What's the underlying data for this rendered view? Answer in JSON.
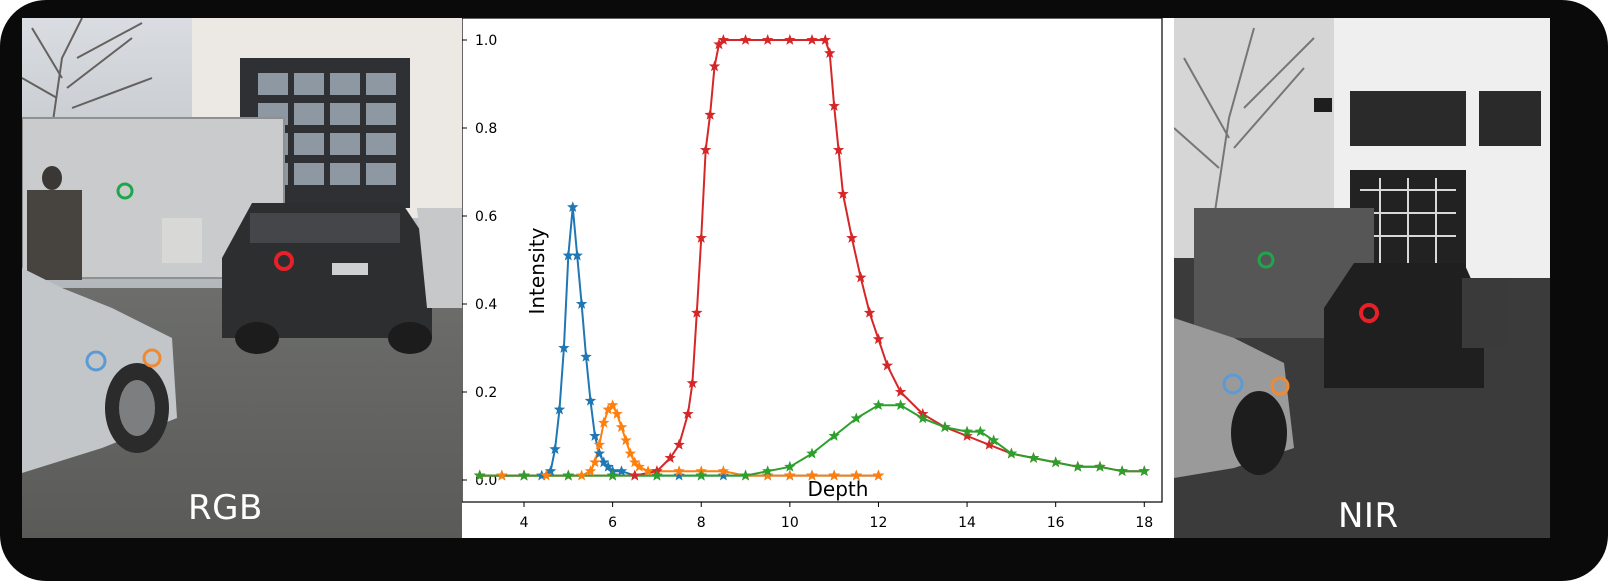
{
  "panels": {
    "rgb_label": "RGB",
    "nir_label": "NIR"
  },
  "markers": [
    {
      "name": "green",
      "color": "#1fa64a"
    },
    {
      "name": "red",
      "color": "#e8202a"
    },
    {
      "name": "blue",
      "color": "#5b9bd5"
    },
    {
      "name": "orange",
      "color": "#ee8a35"
    }
  ],
  "chart_data": {
    "type": "line",
    "title": "",
    "xlabel": "Depth",
    "ylabel": "Intensity",
    "xlim": [
      2.6,
      18.4
    ],
    "ylim": [
      -0.05,
      1.05
    ],
    "xticks": [
      4,
      6,
      8,
      10,
      12,
      14,
      16,
      18
    ],
    "yticks": [
      0.0,
      0.2,
      0.4,
      0.6,
      0.8,
      1.0
    ],
    "marker": "star",
    "series": [
      {
        "name": "blue",
        "color": "#1f77b4",
        "x": [
          3.0,
          3.5,
          4.0,
          4.4,
          4.6,
          4.7,
          4.8,
          4.9,
          5.0,
          5.1,
          5.2,
          5.3,
          5.4,
          5.5,
          5.6,
          5.7,
          5.8,
          5.9,
          6.0,
          6.2,
          6.5,
          7.0,
          7.5,
          8.0,
          8.5,
          9.0,
          9.5,
          10.0,
          10.5,
          11.0,
          11.5,
          12.0
        ],
        "y": [
          0.01,
          0.01,
          0.01,
          0.01,
          0.02,
          0.07,
          0.16,
          0.3,
          0.51,
          0.62,
          0.51,
          0.4,
          0.28,
          0.18,
          0.1,
          0.06,
          0.04,
          0.03,
          0.02,
          0.02,
          0.01,
          0.01,
          0.01,
          0.01,
          0.01,
          0.01,
          0.01,
          0.01,
          0.01,
          0.01,
          0.01,
          0.01
        ]
      },
      {
        "name": "orange",
        "color": "#ff7f0e",
        "x": [
          3.0,
          3.5,
          4.0,
          4.5,
          5.0,
          5.3,
          5.5,
          5.6,
          5.7,
          5.8,
          5.9,
          6.0,
          6.1,
          6.2,
          6.3,
          6.4,
          6.5,
          6.6,
          6.8,
          7.0,
          7.5,
          8.0,
          8.5,
          9.0,
          9.5,
          10.0,
          10.5,
          11.0,
          11.5,
          12.0
        ],
        "y": [
          0.01,
          0.01,
          0.01,
          0.01,
          0.01,
          0.01,
          0.02,
          0.04,
          0.08,
          0.13,
          0.16,
          0.17,
          0.15,
          0.12,
          0.09,
          0.06,
          0.04,
          0.03,
          0.02,
          0.02,
          0.02,
          0.02,
          0.02,
          0.01,
          0.01,
          0.01,
          0.01,
          0.01,
          0.01,
          0.01
        ]
      },
      {
        "name": "red",
        "color": "#d62728",
        "x": [
          3.0,
          4.0,
          5.0,
          6.0,
          6.5,
          7.0,
          7.3,
          7.5,
          7.7,
          7.8,
          7.9,
          8.0,
          8.1,
          8.2,
          8.3,
          8.4,
          8.5,
          9.0,
          9.5,
          10.0,
          10.5,
          10.8,
          10.9,
          11.0,
          11.1,
          11.2,
          11.4,
          11.6,
          11.8,
          12.0,
          12.2,
          12.5,
          13.0,
          13.5,
          14.0,
          14.5,
          15.0,
          15.5,
          16.0,
          16.5,
          17.0,
          17.5,
          18.0
        ],
        "y": [
          0.01,
          0.01,
          0.01,
          0.01,
          0.01,
          0.02,
          0.05,
          0.08,
          0.15,
          0.22,
          0.38,
          0.55,
          0.75,
          0.83,
          0.94,
          0.99,
          1.0,
          1.0,
          1.0,
          1.0,
          1.0,
          1.0,
          0.97,
          0.85,
          0.75,
          0.65,
          0.55,
          0.46,
          0.38,
          0.32,
          0.26,
          0.2,
          0.15,
          0.12,
          0.1,
          0.08,
          0.06,
          0.05,
          0.04,
          0.03,
          0.03,
          0.02,
          0.02
        ]
      },
      {
        "name": "green",
        "color": "#2ca02c",
        "x": [
          3.0,
          4.0,
          5.0,
          6.0,
          7.0,
          8.0,
          9.0,
          9.5,
          10.0,
          10.5,
          11.0,
          11.5,
          12.0,
          12.5,
          13.0,
          13.5,
          14.0,
          14.3,
          14.6,
          15.0,
          15.5,
          16.0,
          16.5,
          17.0,
          17.5,
          18.0
        ],
        "y": [
          0.01,
          0.01,
          0.01,
          0.01,
          0.01,
          0.01,
          0.01,
          0.02,
          0.03,
          0.06,
          0.1,
          0.14,
          0.17,
          0.17,
          0.14,
          0.12,
          0.11,
          0.11,
          0.09,
          0.06,
          0.05,
          0.04,
          0.03,
          0.03,
          0.02,
          0.02
        ]
      }
    ]
  }
}
